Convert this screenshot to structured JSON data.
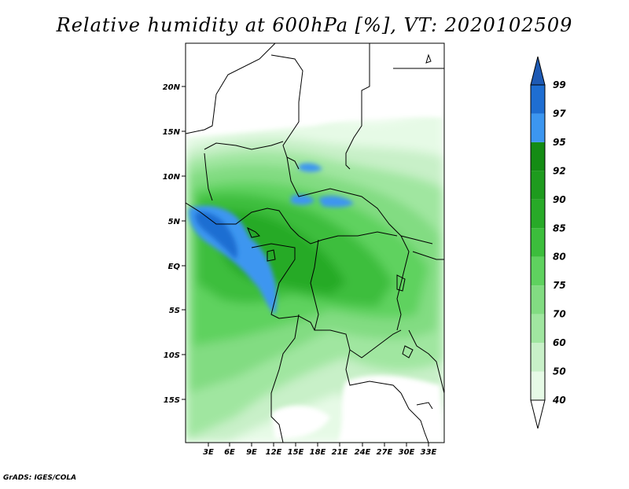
{
  "title": "Relative humidity at 600hPa [%], VT: 2020102509",
  "footer": "GrADS: IGES/COLA",
  "map": {
    "lat_labels": [
      "20N",
      "15N",
      "10N",
      "5N",
      "EQ",
      "5S",
      "10S",
      "15S"
    ],
    "lon_labels": [
      "3E",
      "6E",
      "9E",
      "12E",
      "15E",
      "18E",
      "21E",
      "24E",
      "27E",
      "30E",
      "33E"
    ]
  },
  "colorbar": {
    "levels": [
      "40",
      "50",
      "60",
      "70",
      "75",
      "80",
      "85",
      "90",
      "92",
      "95",
      "97",
      "99"
    ],
    "colors": [
      "#ffffff",
      "#e6fae6",
      "#c8f0c8",
      "#a0e6a0",
      "#82dc82",
      "#5fd25f",
      "#3cbe3c",
      "#28aa28",
      "#1e9b1e",
      "#148c14",
      "#3c96f0",
      "#1e6ed2",
      "#1e5ab4"
    ]
  }
}
